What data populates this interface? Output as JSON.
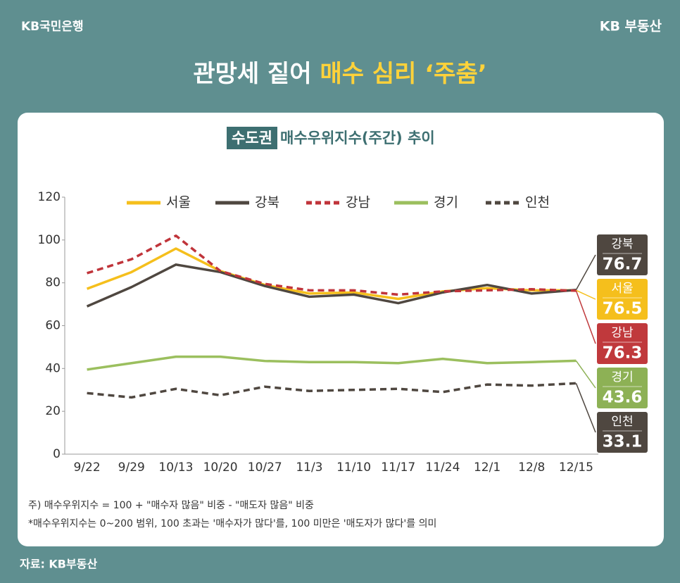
{
  "header": {
    "brand_left": "KB국민은행",
    "brand_right": "KB 부동산"
  },
  "source": "자료: KB부동산",
  "chart_data": {
    "type": "line",
    "title": {
      "plain": "관망세 짙어",
      "highlight": "매수 심리 ‘주춤’"
    },
    "subtitle": {
      "highlight": "수도권",
      "plain": "매수우위지수(주간) 추이"
    },
    "categories": [
      "9/22",
      "9/29",
      "10/13",
      "10/20",
      "10/27",
      "11/3",
      "11/10",
      "11/17",
      "11/24",
      "12/1",
      "12/8",
      "12/15"
    ],
    "series": [
      {
        "name": "서울",
        "color": "#f5bf1c",
        "style": "solid",
        "values": [
          77.2,
          85,
          96,
          85.5,
          79,
          75,
          75.5,
          72.5,
          76,
          77.5,
          76.5,
          76.5
        ]
      },
      {
        "name": "강북",
        "color": "#4f4740",
        "style": "solid",
        "values": [
          69,
          78,
          88.5,
          85,
          78.5,
          73.5,
          74.5,
          70.5,
          75.5,
          79,
          75,
          76.7
        ]
      },
      {
        "name": "강남",
        "color": "#c0343a",
        "style": "dashed",
        "values": [
          84.5,
          91,
          102,
          85.5,
          79.5,
          76.5,
          76.5,
          74.5,
          76,
          76.5,
          77,
          76.3
        ]
      },
      {
        "name": "경기",
        "color": "#9bbf5e",
        "style": "solid",
        "values": [
          39.5,
          42.5,
          45.5,
          45.5,
          43.5,
          43,
          43,
          42.5,
          44.5,
          42.5,
          43,
          43.6
        ]
      },
      {
        "name": "인천",
        "color": "#4f4740",
        "style": "dashed",
        "values": [
          28.5,
          26.5,
          30.5,
          27.5,
          31.5,
          29.5,
          30,
          30.5,
          29,
          32.5,
          32,
          33.1
        ]
      }
    ],
    "label_order": [
      1,
      0,
      2,
      3,
      4
    ],
    "label_colors": [
      "#f5bf1c",
      "#4f4740",
      "#c0393c",
      "#8db155",
      "#4f4740"
    ],
    "ylim": [
      0,
      120
    ],
    "yticks": [
      0,
      20,
      40,
      60,
      80,
      100,
      120
    ],
    "grid": false,
    "notes": [
      "주) 매수우위지수 = 100 + \"매수자 많음\" 비중 - \"매도자 많음\" 비중",
      "*매수우위지수는 0~200 범위, 100 초과는 '매수자가 많다'를, 100 미만은 '매도자가 많다'를 의미"
    ]
  }
}
